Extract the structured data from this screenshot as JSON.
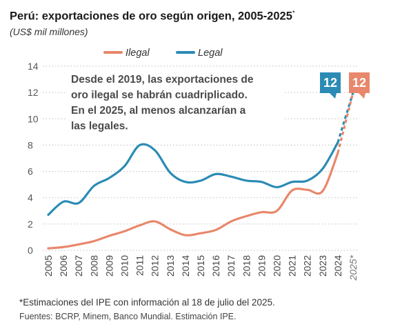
{
  "header": {
    "title": "Perú: exportaciones de oro según origen, 2005-2025",
    "title_mark": "*",
    "subtitle": "(US$ mil millones)"
  },
  "annotation": [
    "Desde el 2019, las exportaciones de",
    "oro ilegal se habrán cuadriplicado.",
    "En el 2025, al menos alcanzarían a",
    "las legales."
  ],
  "footer": {
    "footnote": "*Estimaciones del IPE con información al 18 de julio del 2025.",
    "sources": "Fuentes: BCRP, Minem, Banco Mundial. Estimación IPE."
  },
  "chart_data": {
    "type": "line",
    "x_labels": [
      "2005",
      "2006",
      "2007",
      "2008",
      "2009",
      "2010",
      "2011",
      "2012",
      "2013",
      "2014",
      "2015",
      "2016",
      "2017",
      "2018",
      "2019",
      "2020",
      "2021",
      "2022",
      "2023",
      "2024",
      "2025*"
    ],
    "ylim": [
      0,
      14
    ],
    "yticks": [
      0,
      2,
      4,
      6,
      8,
      10,
      12,
      14
    ],
    "legend_position": "top",
    "series": [
      {
        "name": "Ilegal",
        "color": "#e8876b",
        "x": [
          2005,
          2006,
          2007,
          2008,
          2009,
          2010,
          2011,
          2012,
          2013,
          2014,
          2015,
          2016,
          2017,
          2018,
          2019,
          2020,
          2021,
          2022,
          2023,
          2024
        ],
        "values": [
          0.15,
          0.25,
          0.45,
          0.7,
          1.1,
          1.45,
          1.9,
          2.2,
          1.6,
          1.15,
          1.3,
          1.55,
          2.2,
          2.6,
          2.9,
          3.0,
          4.55,
          4.6,
          4.5,
          7.4
        ],
        "projection": {
          "x": [
            2024,
            2025
          ],
          "values": [
            7.4,
            12.0
          ]
        },
        "end_label": "12"
      },
      {
        "name": "Legal",
        "color": "#2b8bb5",
        "x": [
          2005,
          2006,
          2007,
          2008,
          2009,
          2010,
          2011,
          2012,
          2013,
          2014,
          2015,
          2016,
          2017,
          2018,
          2019,
          2020,
          2021,
          2022,
          2023,
          2024
        ],
        "values": [
          2.7,
          3.7,
          3.6,
          4.9,
          5.5,
          6.4,
          8.0,
          7.6,
          5.9,
          5.2,
          5.3,
          5.8,
          5.6,
          5.3,
          5.2,
          4.8,
          5.2,
          5.3,
          6.2,
          8.2
        ],
        "projection": {
          "x": [
            2024,
            2025
          ],
          "values": [
            8.2,
            12.0
          ]
        },
        "end_label": "12"
      }
    ]
  }
}
